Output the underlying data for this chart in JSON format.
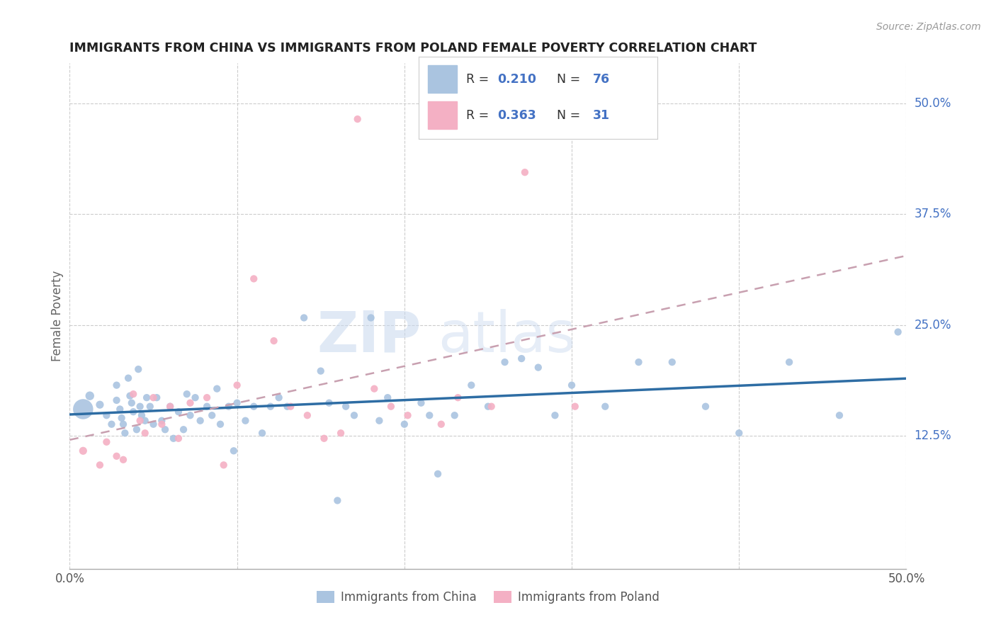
{
  "title": "IMMIGRANTS FROM CHINA VS IMMIGRANTS FROM POLAND FEMALE POVERTY CORRELATION CHART",
  "source": "Source: ZipAtlas.com",
  "ylabel": "Female Poverty",
  "xlim": [
    0.0,
    0.5
  ],
  "ylim": [
    -0.025,
    0.545
  ],
  "ytick_positions": [
    0.125,
    0.25,
    0.375,
    0.5
  ],
  "ytick_labels": [
    "12.5%",
    "25.0%",
    "37.5%",
    "50.0%"
  ],
  "china_color": "#aac4e0",
  "china_line_color": "#2e6da4",
  "poland_color": "#f4b0c4",
  "poland_line_color": "#d08090",
  "legend_text_color": "#4472c4",
  "china_R": "0.210",
  "china_N": "76",
  "poland_R": "0.363",
  "poland_N": "31",
  "china_x": [
    0.008,
    0.012,
    0.018,
    0.022,
    0.025,
    0.028,
    0.028,
    0.03,
    0.031,
    0.032,
    0.033,
    0.035,
    0.036,
    0.037,
    0.038,
    0.04,
    0.041,
    0.042,
    0.043,
    0.045,
    0.046,
    0.048,
    0.05,
    0.052,
    0.055,
    0.057,
    0.06,
    0.062,
    0.065,
    0.068,
    0.07,
    0.072,
    0.075,
    0.078,
    0.082,
    0.085,
    0.088,
    0.09,
    0.095,
    0.098,
    0.1,
    0.105,
    0.11,
    0.115,
    0.12,
    0.125,
    0.13,
    0.14,
    0.15,
    0.155,
    0.16,
    0.165,
    0.17,
    0.18,
    0.185,
    0.19,
    0.2,
    0.21,
    0.215,
    0.22,
    0.23,
    0.24,
    0.25,
    0.26,
    0.27,
    0.28,
    0.29,
    0.3,
    0.32,
    0.34,
    0.36,
    0.38,
    0.4,
    0.43,
    0.46,
    0.495
  ],
  "china_y": [
    0.155,
    0.17,
    0.16,
    0.148,
    0.138,
    0.182,
    0.165,
    0.155,
    0.145,
    0.138,
    0.128,
    0.19,
    0.17,
    0.162,
    0.152,
    0.132,
    0.2,
    0.158,
    0.148,
    0.142,
    0.168,
    0.158,
    0.138,
    0.168,
    0.142,
    0.132,
    0.158,
    0.122,
    0.152,
    0.132,
    0.172,
    0.148,
    0.168,
    0.142,
    0.158,
    0.148,
    0.178,
    0.138,
    0.158,
    0.108,
    0.162,
    0.142,
    0.158,
    0.128,
    0.158,
    0.168,
    0.158,
    0.258,
    0.198,
    0.162,
    0.052,
    0.158,
    0.148,
    0.258,
    0.142,
    0.168,
    0.138,
    0.162,
    0.148,
    0.082,
    0.148,
    0.182,
    0.158,
    0.208,
    0.212,
    0.202,
    0.148,
    0.182,
    0.158,
    0.208,
    0.208,
    0.158,
    0.128,
    0.208,
    0.148,
    0.242
  ],
  "poland_x": [
    0.008,
    0.018,
    0.022,
    0.028,
    0.032,
    0.038,
    0.042,
    0.045,
    0.05,
    0.055,
    0.06,
    0.065,
    0.072,
    0.082,
    0.092,
    0.1,
    0.11,
    0.122,
    0.132,
    0.142,
    0.152,
    0.162,
    0.172,
    0.182,
    0.192,
    0.202,
    0.222,
    0.232,
    0.252,
    0.272,
    0.302
  ],
  "poland_y": [
    0.108,
    0.092,
    0.118,
    0.102,
    0.098,
    0.172,
    0.142,
    0.128,
    0.168,
    0.138,
    0.158,
    0.122,
    0.162,
    0.168,
    0.092,
    0.182,
    0.302,
    0.232,
    0.158,
    0.148,
    0.122,
    0.128,
    0.482,
    0.178,
    0.158,
    0.148,
    0.138,
    0.168,
    0.158,
    0.422,
    0.158
  ]
}
